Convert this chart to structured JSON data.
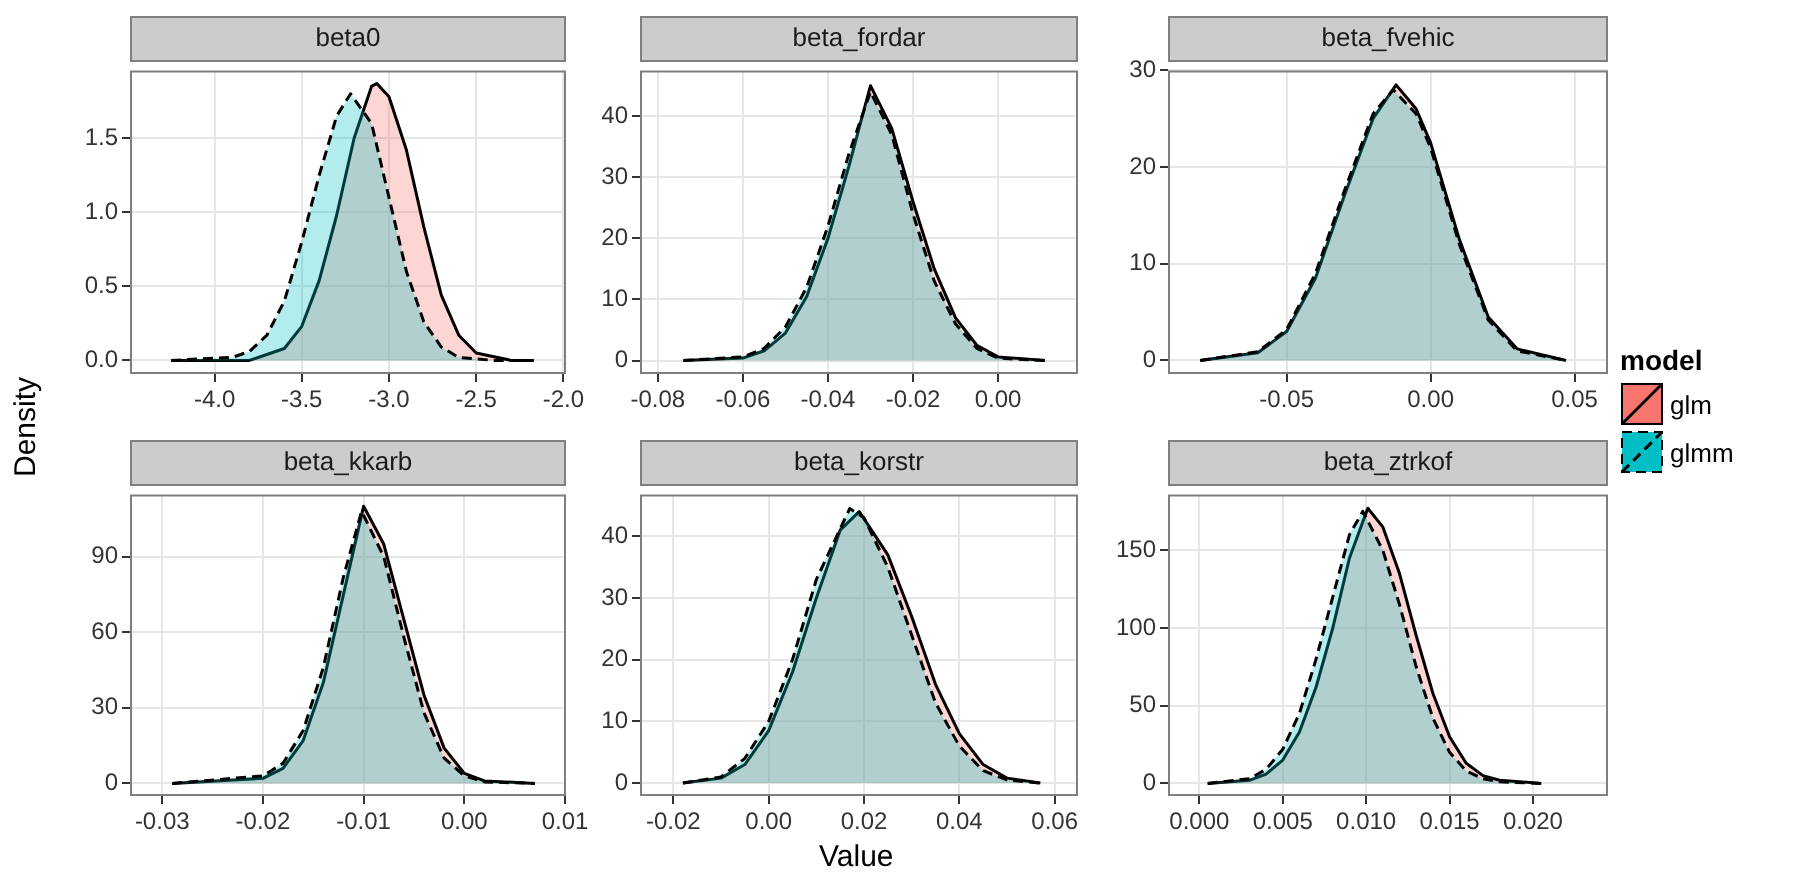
{
  "chart_data": [
    {
      "type": "area",
      "title": "beta0",
      "xlim": [
        -4.485,
        -1.985
      ],
      "ylim": [
        -0.092,
        1.958
      ],
      "xticks": [
        {
          "value": -4,
          "label": "-4.0"
        },
        {
          "value": -3.5,
          "label": "-3.5"
        },
        {
          "value": -3,
          "label": "-3.0"
        },
        {
          "value": -2.5,
          "label": "-2.5"
        },
        {
          "value": -2,
          "label": "-2.0"
        }
      ],
      "yticks": [
        {
          "value": 0,
          "label": "0.0"
        },
        {
          "value": 0.5,
          "label": "0.5"
        },
        {
          "value": 1,
          "label": "1.0"
        },
        {
          "value": 1.5,
          "label": "1.5"
        }
      ],
      "grid": true,
      "series": [
        {
          "color": "#f8766d",
          "line_style": "solid",
          "x": [
            -4.25,
            -3.8,
            -3.6,
            -3.5,
            -3.4,
            -3.3,
            -3.2,
            -3.1,
            -3.07,
            -3.0,
            -2.9,
            -2.8,
            -2.7,
            -2.6,
            -2.5,
            -2.3,
            -2.17
          ],
          "values": [
            0,
            0,
            0.08,
            0.23,
            0.54,
            0.98,
            1.5,
            1.85,
            1.87,
            1.78,
            1.42,
            0.9,
            0.44,
            0.17,
            0.05,
            0,
            0
          ]
        },
        {
          "color": "#00bfc4",
          "line_style": "dashed",
          "x": [
            -4.25,
            -3.9,
            -3.8,
            -3.7,
            -3.6,
            -3.5,
            -3.4,
            -3.3,
            -3.22,
            -3.1,
            -3.0,
            -2.9,
            -2.8,
            -2.7,
            -2.6,
            -2.4,
            -2.17
          ],
          "values": [
            0,
            0.02,
            0.06,
            0.17,
            0.4,
            0.8,
            1.25,
            1.65,
            1.8,
            1.6,
            1.1,
            0.6,
            0.26,
            0.09,
            0.02,
            0,
            0
          ]
        }
      ]
    },
    {
      "type": "area",
      "title": "beta_fordar",
      "xlim": [
        -0.0842,
        0.0188
      ],
      "ylim": [
        -2.2,
        47.5
      ],
      "xticks": [
        {
          "value": -0.08,
          "label": "-0.08"
        },
        {
          "value": -0.06,
          "label": "-0.06"
        },
        {
          "value": -0.04,
          "label": "-0.04"
        },
        {
          "value": -0.02,
          "label": "-0.02"
        },
        {
          "value": 0,
          "label": "0.00"
        }
      ],
      "yticks": [
        0,
        10,
        20,
        30,
        40
      ],
      "grid": true,
      "series": [
        {
          "color": "#f8766d",
          "line_style": "solid",
          "x": [
            -0.074,
            -0.06,
            -0.055,
            -0.05,
            -0.045,
            -0.04,
            -0.035,
            -0.03,
            -0.025,
            -0.02,
            -0.015,
            -0.01,
            -0.005,
            0,
            0.011
          ],
          "values": [
            0,
            0.4,
            1.6,
            4.5,
            10.5,
            20,
            32,
            45,
            38,
            26,
            15,
            7,
            2.5,
            0.6,
            0
          ]
        },
        {
          "color": "#00bfc4",
          "line_style": "dashed",
          "x": [
            -0.074,
            -0.06,
            -0.055,
            -0.05,
            -0.045,
            -0.04,
            -0.035,
            -0.03,
            -0.025,
            -0.02,
            -0.015,
            -0.01,
            -0.005,
            0,
            0.011
          ],
          "values": [
            0,
            0.6,
            2,
            5.5,
            12,
            22,
            34,
            44,
            37,
            24,
            13,
            6,
            2,
            0.4,
            0
          ]
        }
      ]
    },
    {
      "type": "area",
      "title": "beta_fvehic",
      "legend": "right",
      "legend_title": "model",
      "xlim": [
        -0.0912,
        0.0616
      ],
      "ylim": [
        -1.4,
        30
      ],
      "xticks": [
        {
          "value": -0.05,
          "label": "-0.05"
        },
        {
          "value": 0,
          "label": "0.00"
        },
        {
          "value": 0.05,
          "label": "0.05"
        }
      ],
      "yticks": [
        0,
        10,
        20,
        30
      ],
      "grid": true,
      "series": [
        {
          "name": "glm",
          "color": "#f8766d",
          "line_style": "solid",
          "x": [
            -0.08,
            -0.06,
            -0.05,
            -0.04,
            -0.03,
            -0.02,
            -0.012,
            -0.005,
            0,
            0.01,
            0.02,
            0.03,
            0.047
          ],
          "values": [
            0,
            0.8,
            3,
            8.5,
            17,
            25,
            28.5,
            26,
            22.5,
            12.5,
            4.5,
            1.2,
            0
          ]
        },
        {
          "name": "glmm",
          "color": "#00bfc4",
          "line_style": "dashed",
          "x": [
            -0.08,
            -0.06,
            -0.05,
            -0.04,
            -0.03,
            -0.02,
            -0.013,
            -0.005,
            0,
            0.01,
            0.02,
            0.03,
            0.047
          ],
          "values": [
            0,
            0.9,
            3.2,
            9,
            17.5,
            25.5,
            28,
            25.5,
            22,
            12,
            4.2,
            1,
            0
          ]
        }
      ]
    },
    {
      "type": "area",
      "title": "beta_kkarb",
      "ylabel": "Density",
      "xlim": [
        -0.0332,
        0.0101
      ],
      "ylim": [
        -5,
        114.7
      ],
      "xticks": [
        {
          "value": -0.03,
          "label": "-0.03"
        },
        {
          "value": -0.02,
          "label": "-0.02"
        },
        {
          "value": -0.01,
          "label": "-0.01"
        },
        {
          "value": 0,
          "label": "0.00"
        },
        {
          "value": 0.01,
          "label": "0.01"
        }
      ],
      "yticks": [
        0,
        30,
        60,
        90
      ],
      "grid": true,
      "series": [
        {
          "color": "#f8766d",
          "line_style": "solid",
          "x": [
            -0.029,
            -0.02,
            -0.018,
            -0.016,
            -0.014,
            -0.012,
            -0.01,
            -0.008,
            -0.006,
            -0.004,
            -0.002,
            0,
            0.002,
            0.007
          ],
          "values": [
            0,
            2,
            6,
            17,
            40,
            75,
            110,
            95,
            65,
            35,
            14,
            4,
            1,
            0
          ]
        },
        {
          "color": "#00bfc4",
          "line_style": "dashed",
          "x": [
            -0.029,
            -0.02,
            -0.018,
            -0.016,
            -0.014,
            -0.012,
            -0.0102,
            -0.008,
            -0.006,
            -0.004,
            -0.002,
            0,
            0.002,
            0.007
          ],
          "values": [
            0,
            3,
            8,
            21,
            46,
            82,
            108,
            90,
            58,
            28,
            10,
            3,
            0.6,
            0
          ]
        }
      ]
    },
    {
      "type": "area",
      "title": "beta_korstr",
      "xlabel": "Value",
      "xlim": [
        -0.027,
        0.0649
      ],
      "ylim": [
        -2.1,
        46.8
      ],
      "xticks": [
        {
          "value": -0.02,
          "label": "-0.02"
        },
        {
          "value": 0,
          "label": "0.00"
        },
        {
          "value": 0.02,
          "label": "0.02"
        },
        {
          "value": 0.04,
          "label": "0.04"
        },
        {
          "value": 0.06,
          "label": "0.06"
        }
      ],
      "yticks": [
        0,
        10,
        20,
        30,
        40
      ],
      "grid": true,
      "series": [
        {
          "color": "#f8766d",
          "line_style": "solid",
          "x": [
            -0.018,
            -0.01,
            -0.005,
            0,
            0.005,
            0.01,
            0.015,
            0.019,
            0.025,
            0.03,
            0.035,
            0.04,
            0.045,
            0.05,
            0.057
          ],
          "values": [
            0,
            0.8,
            3,
            8.5,
            18,
            30,
            41,
            44,
            37,
            27,
            16,
            8,
            3,
            0.8,
            0
          ]
        },
        {
          "color": "#00bfc4",
          "line_style": "dashed",
          "x": [
            -0.018,
            -0.01,
            -0.005,
            0,
            0.005,
            0.01,
            0.017,
            0.02,
            0.025,
            0.03,
            0.035,
            0.04,
            0.045,
            0.05,
            0.057
          ],
          "values": [
            0,
            1,
            4,
            10,
            20,
            33,
            44.5,
            43,
            35,
            24,
            13,
            6,
            2,
            0.5,
            0
          ]
        }
      ]
    },
    {
      "type": "area",
      "title": "beta_ztrkof",
      "xlim": [
        -0.00188,
        0.0245
      ],
      "ylim": [
        -8.1,
        185.9
      ],
      "xticks": [
        {
          "value": 0,
          "label": "0.000"
        },
        {
          "value": 0.005,
          "label": "0.005"
        },
        {
          "value": 0.01,
          "label": "0.010"
        },
        {
          "value": 0.015,
          "label": "0.015"
        },
        {
          "value": 0.02,
          "label": "0.020"
        }
      ],
      "yticks": [
        0,
        50,
        100,
        150
      ],
      "grid": true,
      "series": [
        {
          "color": "#f8766d",
          "line_style": "solid",
          "x": [
            0.0005,
            0.003,
            0.004,
            0.005,
            0.006,
            0.007,
            0.008,
            0.009,
            0.0101,
            0.011,
            0.012,
            0.013,
            0.014,
            0.015,
            0.016,
            0.017,
            0.018,
            0.0205
          ],
          "values": [
            0,
            2,
            6,
            15,
            33,
            62,
            100,
            145,
            177,
            165,
            135,
            95,
            58,
            30,
            13,
            5,
            2,
            0
          ]
        },
        {
          "color": "#00bfc4",
          "line_style": "dashed",
          "x": [
            0.0005,
            0.003,
            0.004,
            0.005,
            0.006,
            0.007,
            0.008,
            0.009,
            0.0098,
            0.011,
            0.012,
            0.013,
            0.014,
            0.015,
            0.016,
            0.017,
            0.018,
            0.0205
          ],
          "values": [
            0,
            3,
            9,
            22,
            45,
            80,
            120,
            160,
            175,
            150,
            115,
            75,
            42,
            20,
            8,
            3,
            1,
            0
          ]
        }
      ]
    }
  ]
}
